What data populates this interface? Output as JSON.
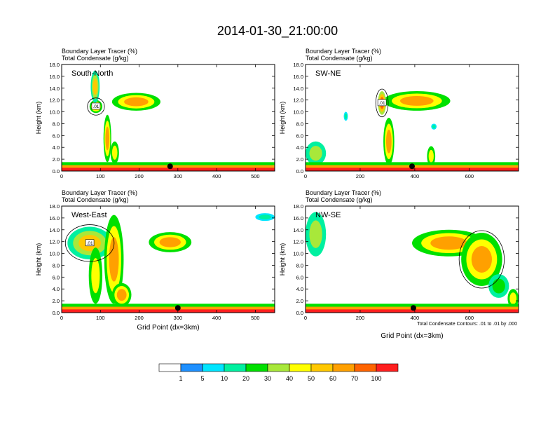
{
  "title": "2014-01-30_21:00:00",
  "chart_data": {
    "type": "heatmap",
    "title": "2014-01-30_21:00:00",
    "panels": [
      {
        "name": "South-North",
        "label": "South-North",
        "header1": "Boundary Layer Tracer   (%)",
        "header2": "Total Condensate   (g/kg)",
        "ylabel": "Height (km)",
        "xlabel": "",
        "xlim": [
          0,
          550
        ],
        "xticks": [
          0,
          100,
          200,
          300,
          400,
          500
        ],
        "ylim": [
          0,
          18
        ],
        "yticks": [
          "0.0",
          "2.0",
          "4.0",
          "6.0",
          "8.0",
          "10.0",
          "12.0",
          "14.0",
          "16.0",
          "18.0"
        ],
        "marker": {
          "x": 280,
          "y": 0.8
        },
        "contour_label": ".01",
        "blobs": [
          {
            "x": [
              130,
              255
            ],
            "y": [
              10.2,
              13.2
            ],
            "v": [
              20,
              40,
              60
            ]
          },
          {
            "x": [
              72,
              105
            ],
            "y": [
              9.8,
              12.0
            ],
            "v": [
              20,
              40,
              60
            ]
          },
          {
            "x": [
              75,
              98
            ],
            "y": [
              11.5,
              17.0
            ],
            "v": [
              10,
              30,
              50
            ]
          },
          {
            "x": [
              108,
              128
            ],
            "y": [
              1.5,
              9.5
            ],
            "v": [
              20,
              40,
              60
            ]
          },
          {
            "x": [
              126,
              148
            ],
            "y": [
              1.2,
              5.0
            ],
            "v": [
              20,
              40
            ]
          }
        ]
      },
      {
        "name": "SW-NE",
        "label": "SW-NE",
        "header1": "Boundary Layer Tracer   (%)",
        "header2": "Total Condensate   (g/kg)",
        "ylabel": "Height (km)",
        "xlabel": "",
        "xlim": [
          0,
          780
        ],
        "xticks": [
          0,
          200,
          400,
          600
        ],
        "ylim": [
          0,
          18
        ],
        "yticks": [
          "0.0",
          "2.0",
          "4.0",
          "6.0",
          "8.0",
          "10.0",
          "12.0",
          "14.0",
          "16.0",
          "18.0"
        ],
        "marker": {
          "x": 390,
          "y": 0.8
        },
        "contour_label": ".01",
        "blobs": [
          {
            "x": [
              285,
              530
            ],
            "y": [
              10.2,
              13.5
            ],
            "v": [
              20,
              40,
              60
            ]
          },
          {
            "x": [
              265,
              295
            ],
            "y": [
              9.5,
              13.5
            ],
            "v": [
              30,
              50,
              70
            ]
          },
          {
            "x": [
              285,
              325
            ],
            "y": [
              1.0,
              9.0
            ],
            "v": [
              20,
              40,
              60
            ]
          },
          {
            "x": [
              0,
              75
            ],
            "y": [
              1.0,
              5.0
            ],
            "v": [
              10,
              30
            ]
          },
          {
            "x": [
              445,
              475
            ],
            "y": [
              0.8,
              4.2
            ],
            "v": [
              20,
              40
            ]
          },
          {
            "x": [
              140,
              155
            ],
            "y": [
              8.5,
              10.0
            ],
            "v": [
              5,
              10
            ]
          },
          {
            "x": [
              460,
              480
            ],
            "y": [
              7.0,
              8.0
            ],
            "v": [
              5,
              10
            ]
          }
        ]
      },
      {
        "name": "West-East",
        "label": "West-East",
        "header1": "Boundary Layer Tracer   (%)",
        "header2": "Total Condensate   (g/kg)",
        "ylabel": "Height (km)",
        "xlabel": "Grid Point (dx=3km)",
        "xlim": [
          0,
          550
        ],
        "xticks": [
          0,
          100,
          200,
          300,
          400,
          500
        ],
        "ylim": [
          0,
          18
        ],
        "yticks": [
          "0.0",
          "2.0",
          "4.0",
          "6.0",
          "8.0",
          "10.0",
          "12.0",
          "14.0",
          "16.0",
          "18.0"
        ],
        "marker": {
          "x": 300,
          "y": 0.8
        },
        "contour_label": ".01",
        "blobs": [
          {
            "x": [
              225,
              335
            ],
            "y": [
              10.2,
              13.6
            ],
            "v": [
              20,
              40,
              60
            ]
          },
          {
            "x": [
              15,
              130
            ],
            "y": [
              9.0,
              14.5
            ],
            "v": [
              10,
              30,
              50
            ]
          },
          {
            "x": [
              110,
              160
            ],
            "y": [
              1.5,
              16.5
            ],
            "v": [
              20,
              40,
              60
            ]
          },
          {
            "x": [
              70,
              105
            ],
            "y": [
              1.5,
              11.0
            ],
            "v": [
              20,
              40
            ]
          },
          {
            "x": [
              130,
              180
            ],
            "y": [
              1.0,
              5.0
            ],
            "v": [
              20,
              40,
              60
            ]
          },
          {
            "x": [
              500,
              550
            ],
            "y": [
              15.5,
              16.8
            ],
            "v": [
              5,
              10
            ]
          }
        ]
      },
      {
        "name": "NW-SE",
        "label": "NW-SE",
        "header1": "Boundary Layer Tracer   (%)",
        "header2": "Total Condensate   (g/kg)",
        "ylabel": "Height (km)",
        "xlabel": "Grid Point (dx=3km)",
        "xlim": [
          0,
          780
        ],
        "xticks": [
          0,
          200,
          400,
          600
        ],
        "ylim": [
          0,
          18
        ],
        "yticks": [
          "0.0",
          "2.0",
          "4.0",
          "6.0",
          "8.0",
          "10.0",
          "12.0",
          "14.0",
          "16.0",
          "18.0"
        ],
        "marker": {
          "x": 395,
          "y": 0.8
        },
        "contour_label": "",
        "blobs": [
          {
            "x": [
              390,
              660
            ],
            "y": [
              9.5,
              14.0
            ],
            "v": [
              20,
              40,
              60
            ]
          },
          {
            "x": [
              570,
              720
            ],
            "y": [
              4.5,
              13.5
            ],
            "v": [
              20,
              40,
              60
            ]
          },
          {
            "x": [
              0,
              75
            ],
            "y": [
              9.5,
              17.0
            ],
            "v": [
              10,
              30
            ]
          },
          {
            "x": [
              670,
              745
            ],
            "y": [
              2.5,
              6.5
            ],
            "v": [
              10,
              20
            ]
          },
          {
            "x": [
              740,
              780
            ],
            "y": [
              0.8,
              4.0
            ],
            "v": [
              20,
              40
            ]
          }
        ]
      }
    ],
    "footnote": "Total Condensate Contours: .01 to .01 by .000",
    "colorbar": {
      "levels": [
        "1",
        "5",
        "10",
        "20",
        "30",
        "40",
        "50",
        "60",
        "70",
        "100"
      ],
      "colors": [
        "#ffffff",
        "#1e90ff",
        "#00e5ff",
        "#00f0a0",
        "#00e000",
        "#a8e83a",
        "#ffff00",
        "#ffc800",
        "#ffa000",
        "#ff6400",
        "#ff1e1e"
      ]
    },
    "surface_layer": {
      "height_km": 1.0,
      "value": 100
    }
  }
}
